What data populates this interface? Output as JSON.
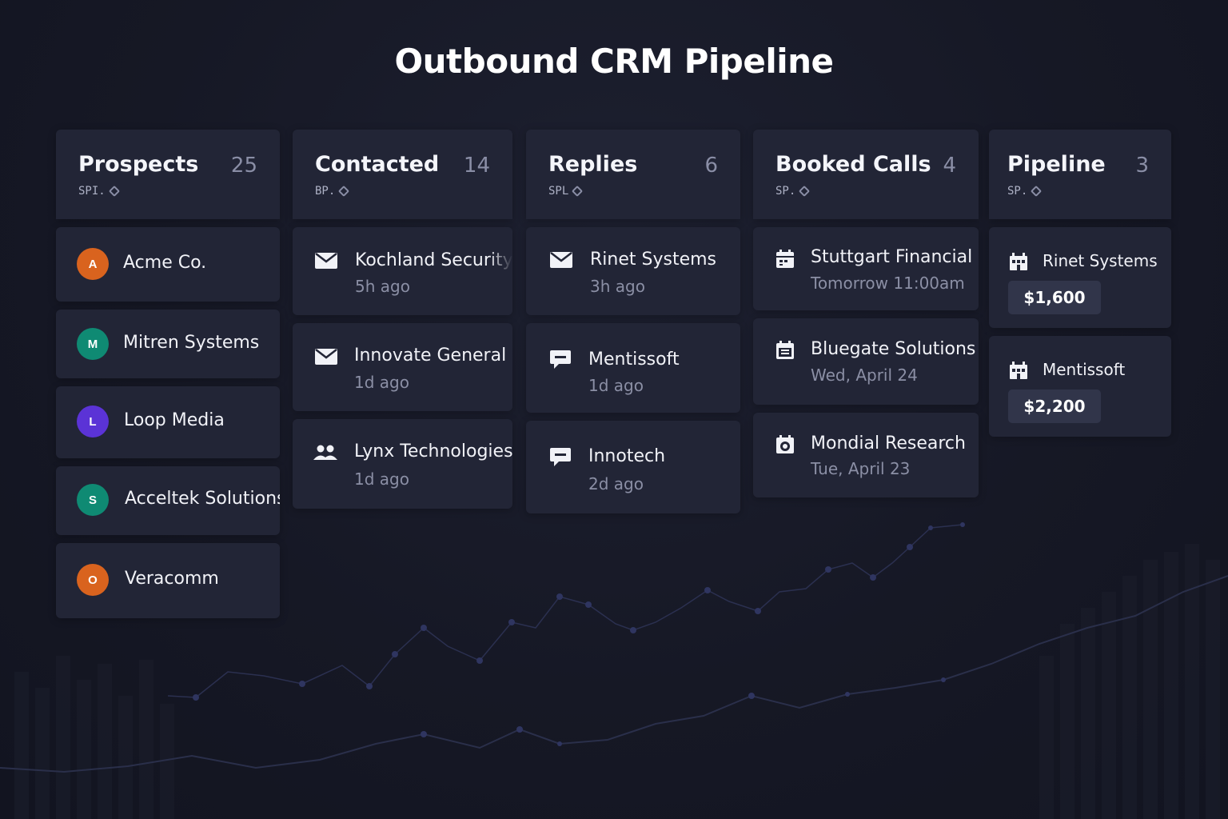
{
  "page": {
    "title": "Outbound CRM Pipeline"
  },
  "columns": [
    {
      "title": "Prospects",
      "count": "25",
      "subtitle": "SPI.",
      "cards": [
        {
          "name": "Acme Co.",
          "initial": "A",
          "avatar_color": "#d9631e"
        },
        {
          "name": "Mitren Systems",
          "initial": "M",
          "avatar_color": "#0f8a73"
        },
        {
          "name": "Loop Media",
          "initial": "L",
          "avatar_color": "#5b33d6"
        },
        {
          "name": "Acceltek Solutions",
          "initial": "S",
          "avatar_color": "#0f8a73"
        },
        {
          "name": "Veracomm",
          "initial": "O",
          "avatar_color": "#d9631e"
        }
      ]
    },
    {
      "title": "Contacted",
      "count": "14",
      "subtitle": "BP.",
      "cards": [
        {
          "name": "Kochland Security",
          "time": "5h ago",
          "icon": "mail-icon"
        },
        {
          "name": "Innovate General",
          "time": "1d ago",
          "icon": "mail-icon"
        },
        {
          "name": "Lynx Technologies",
          "time": "1d ago",
          "icon": "users-icon"
        }
      ]
    },
    {
      "title": "Replies",
      "count": "6",
      "subtitle": "SPL",
      "cards": [
        {
          "name": "Rinet Systems",
          "time": "3h ago",
          "icon": "mail-icon"
        },
        {
          "name": "Mentissoft",
          "time": "1d ago",
          "icon": "chat-icon"
        },
        {
          "name": "Innotech",
          "time": "2d ago",
          "icon": "chat-icon"
        }
      ]
    },
    {
      "title": "Booked Calls",
      "count": "4",
      "subtitle": "SP.",
      "cards": [
        {
          "name": "Stuttgart Financial",
          "time": "Tomorrow 11:00am",
          "icon": "calendar-icon"
        },
        {
          "name": "Bluegate Solutions",
          "time": "Wed, April 24",
          "icon": "calendar-icon"
        },
        {
          "name": "Mondial Research",
          "time": "Tue, April 23",
          "icon": "calendar-clock-icon"
        }
      ]
    },
    {
      "title": "Pipeline",
      "count": "3",
      "subtitle": "SP.",
      "cards": [
        {
          "name": "Rinet Systems",
          "amount": "$1,600",
          "icon": "building-icon"
        },
        {
          "name": "Mentissoft",
          "amount": "$2,200",
          "icon": "building-icon"
        }
      ]
    }
  ]
}
